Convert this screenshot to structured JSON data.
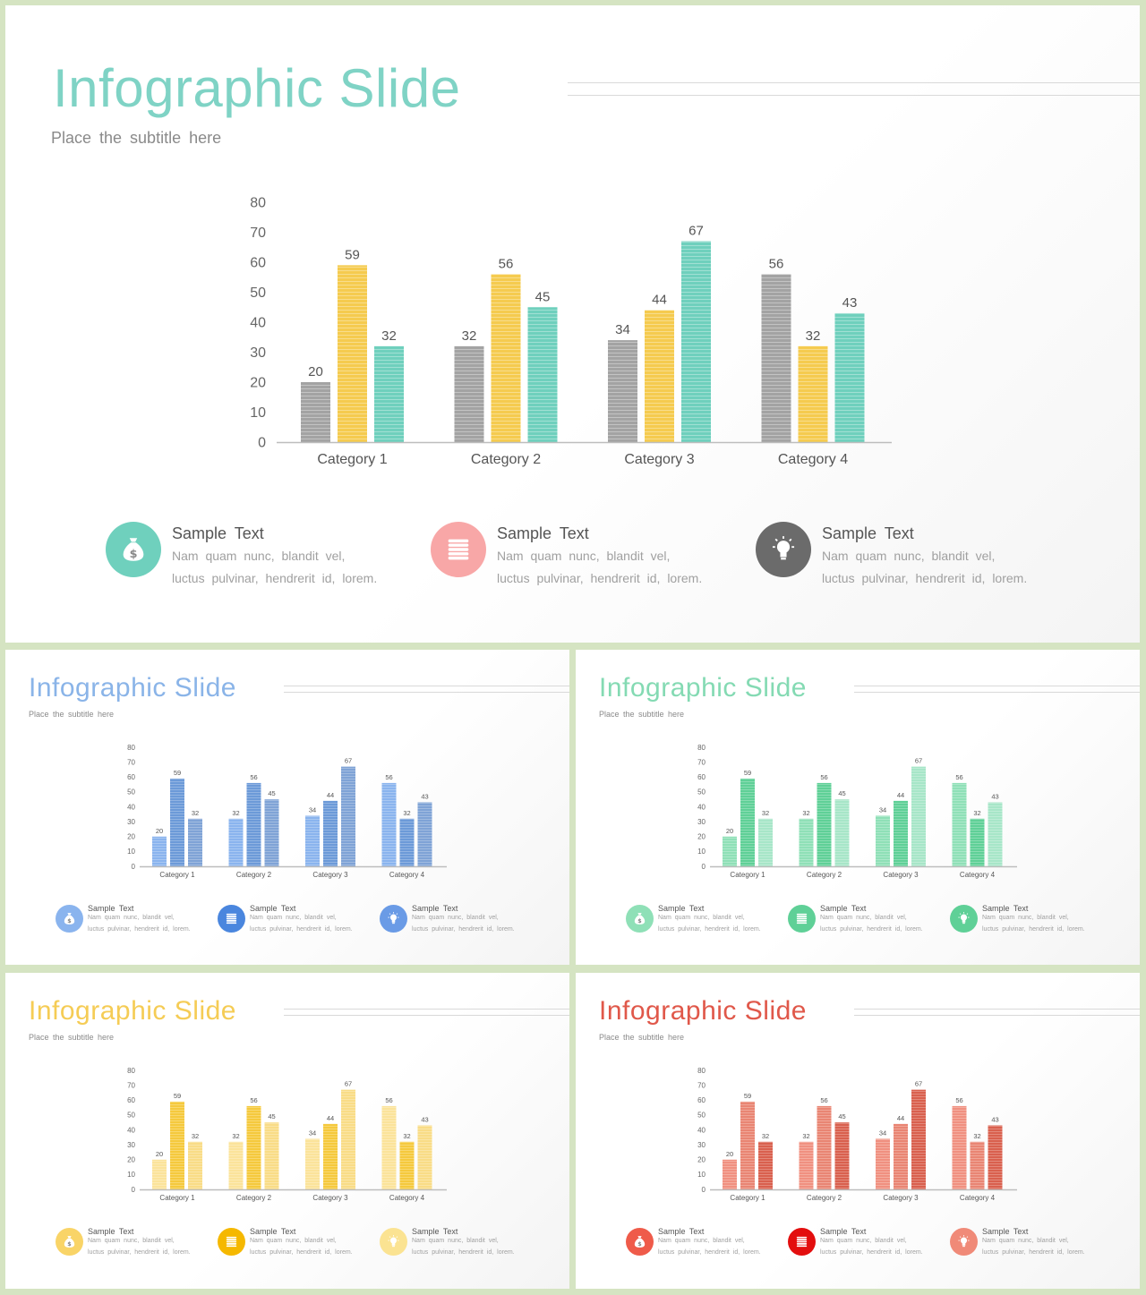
{
  "title": "Infographic Slide",
  "subtitle": "Place  the  subtitle  here",
  "chart_data": {
    "type": "bar",
    "categories": [
      "Category 1",
      "Category 2",
      "Category 3",
      "Category 4"
    ],
    "series": [
      {
        "values": [
          20,
          32,
          34,
          56
        ]
      },
      {
        "values": [
          59,
          56,
          44,
          32
        ]
      },
      {
        "values": [
          32,
          45,
          67,
          43
        ]
      }
    ],
    "yticks": [
      "0",
      "10",
      "20",
      "30",
      "40",
      "50",
      "60",
      "70",
      "80"
    ],
    "ylim": [
      0,
      80
    ],
    "grid": false,
    "legend": "none"
  },
  "features": [
    {
      "title": "Sample  Text",
      "line1": "Nam  quam  nunc,  blandit  vel,",
      "line2": "luctus  pulvinar,  hendrerit  id,  lorem.",
      "icon": "money-bag-icon"
    },
    {
      "title": "Sample  Text",
      "line1": "Nam  quam  nunc,  blandit  vel,",
      "line2": "luctus  pulvinar,  hendrerit  id,  lorem.",
      "icon": "coin-stack-icon"
    },
    {
      "title": "Sample  Text",
      "line1": "Nam  quam  nunc,  blandit  vel,",
      "line2": "luctus  pulvinar,  hendrerit  id,  lorem.",
      "icon": "lightbulb-icon"
    }
  ],
  "themes": {
    "main": {
      "title_color": "#7fd3c5",
      "bars": [
        "#a3a3a3",
        "#f5cb4f",
        "#6fd0bd"
      ],
      "icons": [
        "#6fd0bd",
        "#f8a7a7",
        "#6b6b6b"
      ]
    },
    "blue": {
      "title_color": "#8ab4e8",
      "bars": [
        "#8ab4ee",
        "#6c9ad8",
        "#7fa3d6"
      ],
      "icons": [
        "#8ab4ee",
        "#4a86de",
        "#6a9be6"
      ]
    },
    "green": {
      "title_color": "#84dab3",
      "bars": [
        "#8fe0b7",
        "#5fd097",
        "#a7e6c8"
      ],
      "icons": [
        "#8fe0b7",
        "#5fd097",
        "#5fd097"
      ]
    },
    "yellow": {
      "title_color": "#f5cc55",
      "bars": [
        "#fbe39a",
        "#f5c93d",
        "#f9dc86"
      ],
      "icons": [
        "#f9d467",
        "#f5b800",
        "#fbe392"
      ]
    },
    "red": {
      "title_color": "#e0584a",
      "bars": [
        "#f09080",
        "#e98573",
        "#d9604e"
      ],
      "icons": [
        "#ef5b4a",
        "#e30e0e",
        "#f08a78"
      ]
    }
  }
}
